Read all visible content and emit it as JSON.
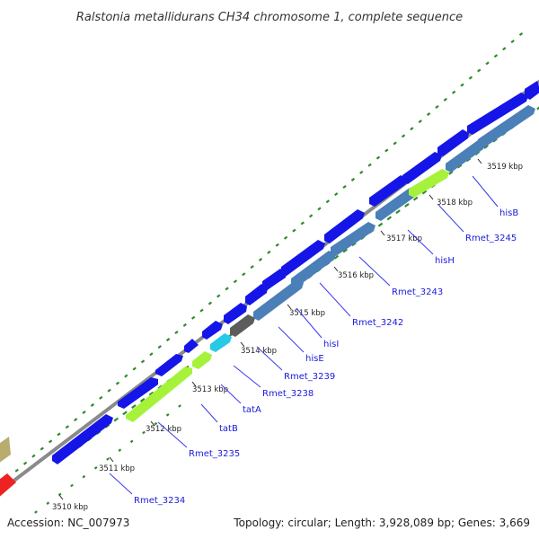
{
  "title": "Ralstonia metallidurans CH34 chromosome 1, complete sequence",
  "footer": {
    "accession": "Accession: NC_007973",
    "summary": "Topology: circular; Length: 3,928,089 bp; Genes: 3,669"
  },
  "colors": {
    "background": "#ffffff",
    "backbone": "#8a8a8a",
    "gc_tick": "#2e8b2e",
    "gene_label": "#1a1adc",
    "label_line": "#3a3af0",
    "blue_cds": "#1515e8",
    "steelblue_cds": "#4a7fb8",
    "lime_feature": "#a6f23a",
    "gray_feature": "#5c5c5c",
    "cyan_feature": "#26c9e6",
    "red_feature": "#ee2222",
    "tan_feature": "#b8ac6e"
  },
  "kbp_ticks": [
    "3510 kbp",
    "3511 kbp",
    "3512 kbp",
    "3513 kbp",
    "3514 kbp",
    "3515 kbp",
    "3516 kbp",
    "3517 kbp",
    "3518 kbp",
    "3519 kbp"
  ],
  "gene_labels": [
    "Rmet_3234",
    "Rmet_3235",
    "tatB",
    "tatA",
    "Rmet_3238",
    "Rmet_3239",
    "hisE",
    "hisI",
    "Rmet_3242",
    "Rmet_3243",
    "hisH",
    "Rmet_3245",
    "hisB"
  ]
}
